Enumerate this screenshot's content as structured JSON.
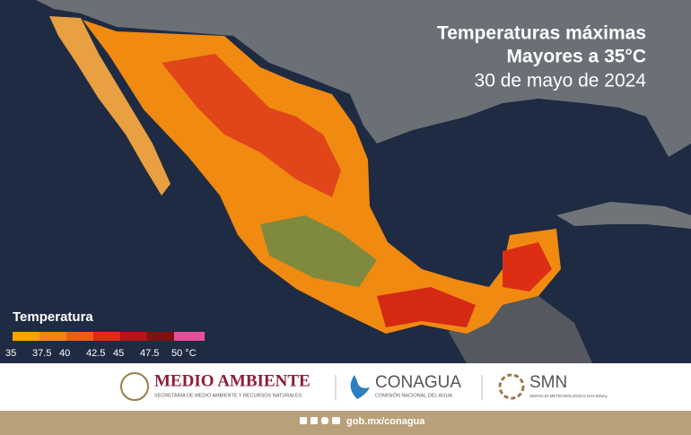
{
  "header": {
    "title_line1": "Temperaturas máximas",
    "title_line2": "Mayores a 35°C",
    "date": "30 de mayo de 2024"
  },
  "legend": {
    "title": "Temperatura",
    "labels": [
      "35",
      "37.5",
      "40",
      "42.5",
      "45",
      "47.5",
      "50 °C"
    ],
    "colors": [
      "#f7a400",
      "#f28314",
      "#ec5e12",
      "#e02a12",
      "#b51414",
      "#7d1212",
      "#e5509a"
    ]
  },
  "footer": {
    "semarnat": "MEDIO AMBIENTE",
    "semarnat_sub": "SECRETARÍA DE MEDIO AMBIENTE Y RECURSOS NATURALES",
    "conagua": "CONAGUA",
    "conagua_sub": "COMISIÓN NACIONAL DEL AGUA",
    "smn": "SMN",
    "smn_sub": "SERVICIO METEOROLÓGICO NACIONAL",
    "url": "gob.mx/conagua"
  }
}
